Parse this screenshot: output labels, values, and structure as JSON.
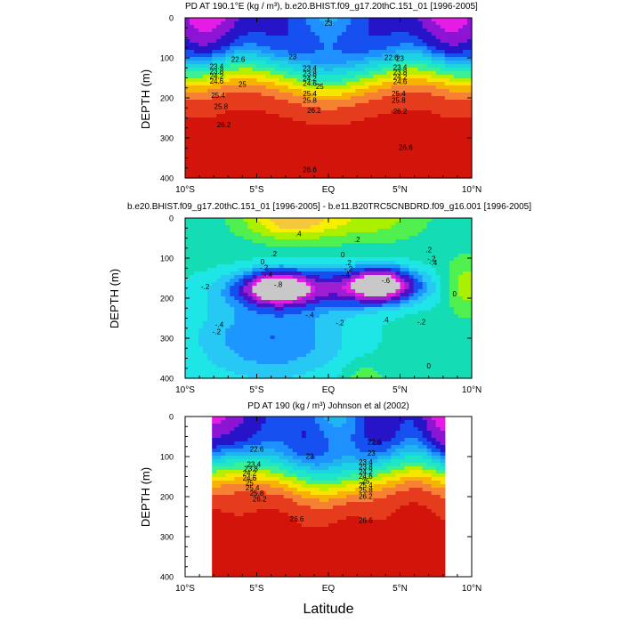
{
  "figure": {
    "xlabel": "Latitude"
  },
  "chart_data": [
    {
      "type": "heatmap",
      "title": "PD AT 190.1°E (kg / m³), b.e20.BHIST.f09_g17.20thC.151_01 [1996-2005]",
      "ylabel": "DEPTH (m)",
      "x_ticks": [
        "10°S",
        "5°S",
        "EQ",
        "5°N",
        "10°N"
      ],
      "y_ticks": [
        "0",
        "100",
        "200",
        "300",
        "400"
      ],
      "xlim": [
        -10,
        10
      ],
      "ylim": [
        0,
        400
      ],
      "contour_labels": [
        {
          "x": -6.3,
          "y": 110,
          "text": "22.6"
        },
        {
          "x": -2.5,
          "y": 103,
          "text": "23"
        },
        {
          "x": 0,
          "y": 20,
          "text": "23"
        },
        {
          "x": 4.4,
          "y": 105,
          "text": "22.6"
        },
        {
          "x": 5.0,
          "y": 108,
          "text": "23"
        },
        {
          "x": -7.8,
          "y": 128,
          "text": "23.4"
        },
        {
          "x": -7.8,
          "y": 140,
          "text": "23.8"
        },
        {
          "x": -7.8,
          "y": 152,
          "text": "24.2"
        },
        {
          "x": -7.8,
          "y": 164,
          "text": "24.6"
        },
        {
          "x": -6.0,
          "y": 172,
          "text": "25"
        },
        {
          "x": -7.7,
          "y": 200,
          "text": "25.4"
        },
        {
          "x": -7.5,
          "y": 228,
          "text": "25.8"
        },
        {
          "x": -7.3,
          "y": 273,
          "text": "26.2"
        },
        {
          "x": -1.3,
          "y": 132,
          "text": "23.4"
        },
        {
          "x": -1.3,
          "y": 146,
          "text": "23.8"
        },
        {
          "x": -1.3,
          "y": 158,
          "text": "24.2"
        },
        {
          "x": -1.3,
          "y": 170,
          "text": "24.6"
        },
        {
          "x": -0.6,
          "y": 178,
          "text": "25"
        },
        {
          "x": -1.3,
          "y": 195,
          "text": "25.4"
        },
        {
          "x": -1.3,
          "y": 212,
          "text": "25.8"
        },
        {
          "x": -1.0,
          "y": 238,
          "text": "26.2"
        },
        {
          "x": 5.0,
          "y": 130,
          "text": "23.4"
        },
        {
          "x": 5.0,
          "y": 142,
          "text": "23.8"
        },
        {
          "x": 5.0,
          "y": 154,
          "text": "24.2"
        },
        {
          "x": 5.0,
          "y": 166,
          "text": "24.6"
        },
        {
          "x": 4.9,
          "y": 196,
          "text": "25.4"
        },
        {
          "x": 4.9,
          "y": 212,
          "text": "25.8"
        },
        {
          "x": 5.0,
          "y": 240,
          "text": "26.2"
        },
        {
          "x": 5.4,
          "y": 330,
          "text": "26.6"
        },
        {
          "x": -1.3,
          "y": 385,
          "text": "26.6"
        }
      ]
    },
    {
      "type": "heatmap",
      "title": "b.e20.BHIST.f09_g17.20thC.151_01 [1996-2005] - b.e11.B20TRC5CNBDRD.f09_g16.001 [1996-2005]",
      "ylabel": "DEPTH (m)",
      "x_ticks": [
        "10°S",
        "5°S",
        "EQ",
        "5°N",
        "10°N"
      ],
      "y_ticks": [
        "0",
        "100",
        "200",
        "300",
        "400"
      ],
      "xlim": [
        -10,
        10
      ],
      "ylim": [
        0,
        400
      ],
      "contour_labels": [
        {
          "x": -2.1,
          "y": 45,
          "text": ".4"
        },
        {
          "x": 2.0,
          "y": 60,
          "text": ".2"
        },
        {
          "x": -3.8,
          "y": 95,
          "text": ".2"
        },
        {
          "x": -4.6,
          "y": 115,
          "text": "0"
        },
        {
          "x": -4.5,
          "y": 130,
          "text": "-.2"
        },
        {
          "x": -4.2,
          "y": 148,
          "text": "-.4"
        },
        {
          "x": 1.0,
          "y": 98,
          "text": "0"
        },
        {
          "x": 1.4,
          "y": 118,
          "text": ".2"
        },
        {
          "x": 1.4,
          "y": 133,
          "text": "-.2"
        },
        {
          "x": 1.2,
          "y": 148,
          "text": "-.4"
        },
        {
          "x": 7.0,
          "y": 85,
          "text": ".2"
        },
        {
          "x": 7.2,
          "y": 108,
          "text": "-.2"
        },
        {
          "x": 7.3,
          "y": 118,
          "text": "-.4"
        },
        {
          "x": -3.5,
          "y": 172,
          "text": "-.8"
        },
        {
          "x": 4.0,
          "y": 162,
          "text": "-.6"
        },
        {
          "x": -8.6,
          "y": 178,
          "text": "-.2"
        },
        {
          "x": 8.8,
          "y": 195,
          "text": "0"
        },
        {
          "x": -7.6,
          "y": 272,
          "text": "-.4"
        },
        {
          "x": -7.8,
          "y": 290,
          "text": "-.2"
        },
        {
          "x": -1.3,
          "y": 248,
          "text": "-.4"
        },
        {
          "x": 0.8,
          "y": 268,
          "text": "-.2"
        },
        {
          "x": 4.0,
          "y": 260,
          "text": ".4"
        },
        {
          "x": 6.5,
          "y": 265,
          "text": "-.2"
        },
        {
          "x": 7.0,
          "y": 375,
          "text": "0"
        }
      ]
    },
    {
      "type": "heatmap",
      "title": "PD AT 190 (kg / m³) Johnson et al (2002)",
      "ylabel": "DEPTH (m)",
      "x_ticks": [
        "10°S",
        "5°S",
        "EQ",
        "5°N",
        "10°N"
      ],
      "y_ticks": [
        "0",
        "100",
        "200",
        "300",
        "400"
      ],
      "xlim": [
        -10,
        10
      ],
      "ylim": [
        0,
        400
      ],
      "data_xlim": [
        -8,
        8
      ],
      "contour_labels": [
        {
          "x": -5.0,
          "y": 88,
          "text": "22.6"
        },
        {
          "x": 3.2,
          "y": 70,
          "text": "22.6"
        },
        {
          "x": -1.3,
          "y": 105,
          "text": "23"
        },
        {
          "x": 3.0,
          "y": 98,
          "text": "23"
        },
        {
          "x": -5.2,
          "y": 125,
          "text": "23.4"
        },
        {
          "x": -5.4,
          "y": 137,
          "text": "23.8"
        },
        {
          "x": -5.5,
          "y": 148,
          "text": "24.2"
        },
        {
          "x": -5.5,
          "y": 160,
          "text": "24.6"
        },
        {
          "x": -5.5,
          "y": 172,
          "text": "25"
        },
        {
          "x": -5.3,
          "y": 184,
          "text": "25.4"
        },
        {
          "x": -5.0,
          "y": 198,
          "text": "25.8"
        },
        {
          "x": -4.8,
          "y": 212,
          "text": "26.2"
        },
        {
          "x": 2.6,
          "y": 120,
          "text": "23.4"
        },
        {
          "x": 2.6,
          "y": 132,
          "text": "23.8"
        },
        {
          "x": 2.6,
          "y": 144,
          "text": "24.2"
        },
        {
          "x": 2.6,
          "y": 156,
          "text": "24.6"
        },
        {
          "x": 2.6,
          "y": 168,
          "text": "25"
        },
        {
          "x": 2.6,
          "y": 178,
          "text": "25.4"
        },
        {
          "x": 2.6,
          "y": 190,
          "text": "25.8"
        },
        {
          "x": 2.6,
          "y": 205,
          "text": "26.2"
        },
        {
          "x": -2.2,
          "y": 262,
          "text": "26.6"
        },
        {
          "x": 2.6,
          "y": 265,
          "text": "26.6"
        }
      ]
    }
  ]
}
